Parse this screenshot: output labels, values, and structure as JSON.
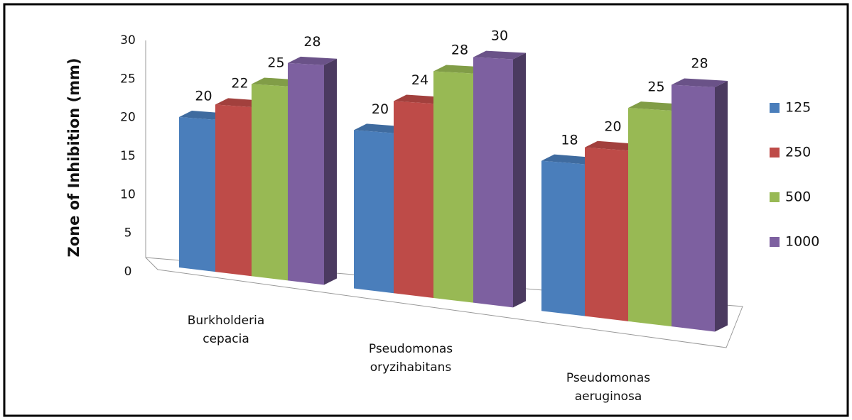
{
  "chart_data": {
    "type": "bar3d",
    "y_label": "Zone of Inhibition (mm)",
    "categories": [
      "Burkholderia cepacia",
      "Pseudomonas oryzihabitans",
      "Pseudomonas aeruginosa"
    ],
    "series": [
      {
        "name": "125",
        "color": "#4a7ebb",
        "values": [
          20,
          20,
          18
        ]
      },
      {
        "name": "250",
        "color": "#be4b48",
        "values": [
          22,
          24,
          20
        ]
      },
      {
        "name": "500",
        "color": "#98b954",
        "values": [
          25,
          28,
          25
        ]
      },
      {
        "name": "1000",
        "color": "#7d60a0",
        "values": [
          28,
          30,
          28
        ]
      }
    ],
    "ylim": [
      0,
      30
    ],
    "yticks": [
      0,
      5,
      10,
      15,
      20,
      25,
      30
    ],
    "legend": "right"
  }
}
